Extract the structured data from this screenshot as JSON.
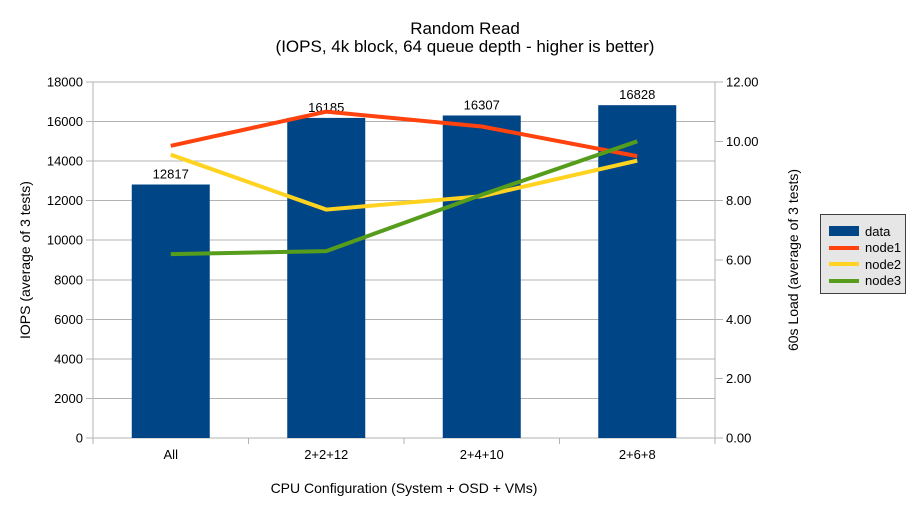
{
  "title": "Random Read",
  "subtitle": "(IOPS, 4k block, 64 queue depth - higher is better)",
  "chart_data": {
    "type": "combo-bar-line",
    "categories": [
      "All",
      "2+2+12",
      "2+4+10",
      "2+6+8"
    ],
    "series": [
      {
        "name": "data",
        "type": "bar",
        "axis": "left",
        "color": "#004586",
        "values": [
          12817,
          16185,
          16307,
          16828
        ]
      },
      {
        "name": "node1",
        "type": "line",
        "axis": "right",
        "color": "#FF420E",
        "values": [
          9.85,
          11.0,
          10.5,
          9.5
        ]
      },
      {
        "name": "node2",
        "type": "line",
        "axis": "right",
        "color": "#FFD320",
        "values": [
          9.55,
          7.7,
          8.15,
          9.35
        ]
      },
      {
        "name": "node3",
        "type": "line",
        "axis": "right",
        "color": "#579D1C",
        "values": [
          6.2,
          6.3,
          8.2,
          10.0
        ]
      }
    ],
    "bar_labels": [
      "12817",
      "16185",
      "16307",
      "16828"
    ],
    "xlabel": "CPU Configuration (System + OSD + VMs)",
    "ylabel_left": "IOPS (average of 3 tests)",
    "ylabel_right": "60s Load (average of 3 tests)",
    "ylim_left": [
      0,
      18000
    ],
    "ylim_right": [
      0,
      12
    ],
    "left_ticks": [
      0,
      2000,
      4000,
      6000,
      8000,
      10000,
      12000,
      14000,
      16000,
      18000
    ],
    "right_ticks": [
      "0.00",
      "2.00",
      "4.00",
      "6.00",
      "8.00",
      "10.00",
      "12.00"
    ],
    "grid": "horizontal",
    "legend_position": "right"
  },
  "legend": {
    "items": [
      {
        "label": "data",
        "color": "#004586",
        "swatch": "bar"
      },
      {
        "label": "node1",
        "color": "#FF420E",
        "swatch": "line"
      },
      {
        "label": "node2",
        "color": "#FFD320",
        "swatch": "line"
      },
      {
        "label": "node3",
        "color": "#579D1C",
        "swatch": "line"
      }
    ]
  },
  "colors": {
    "background": "#FFFFFF",
    "grid": "#B3B3B3",
    "axis": "#B3B3B3",
    "text": "#000000",
    "legend_bg": "#E6E6E6",
    "legend_border": "#404040"
  }
}
